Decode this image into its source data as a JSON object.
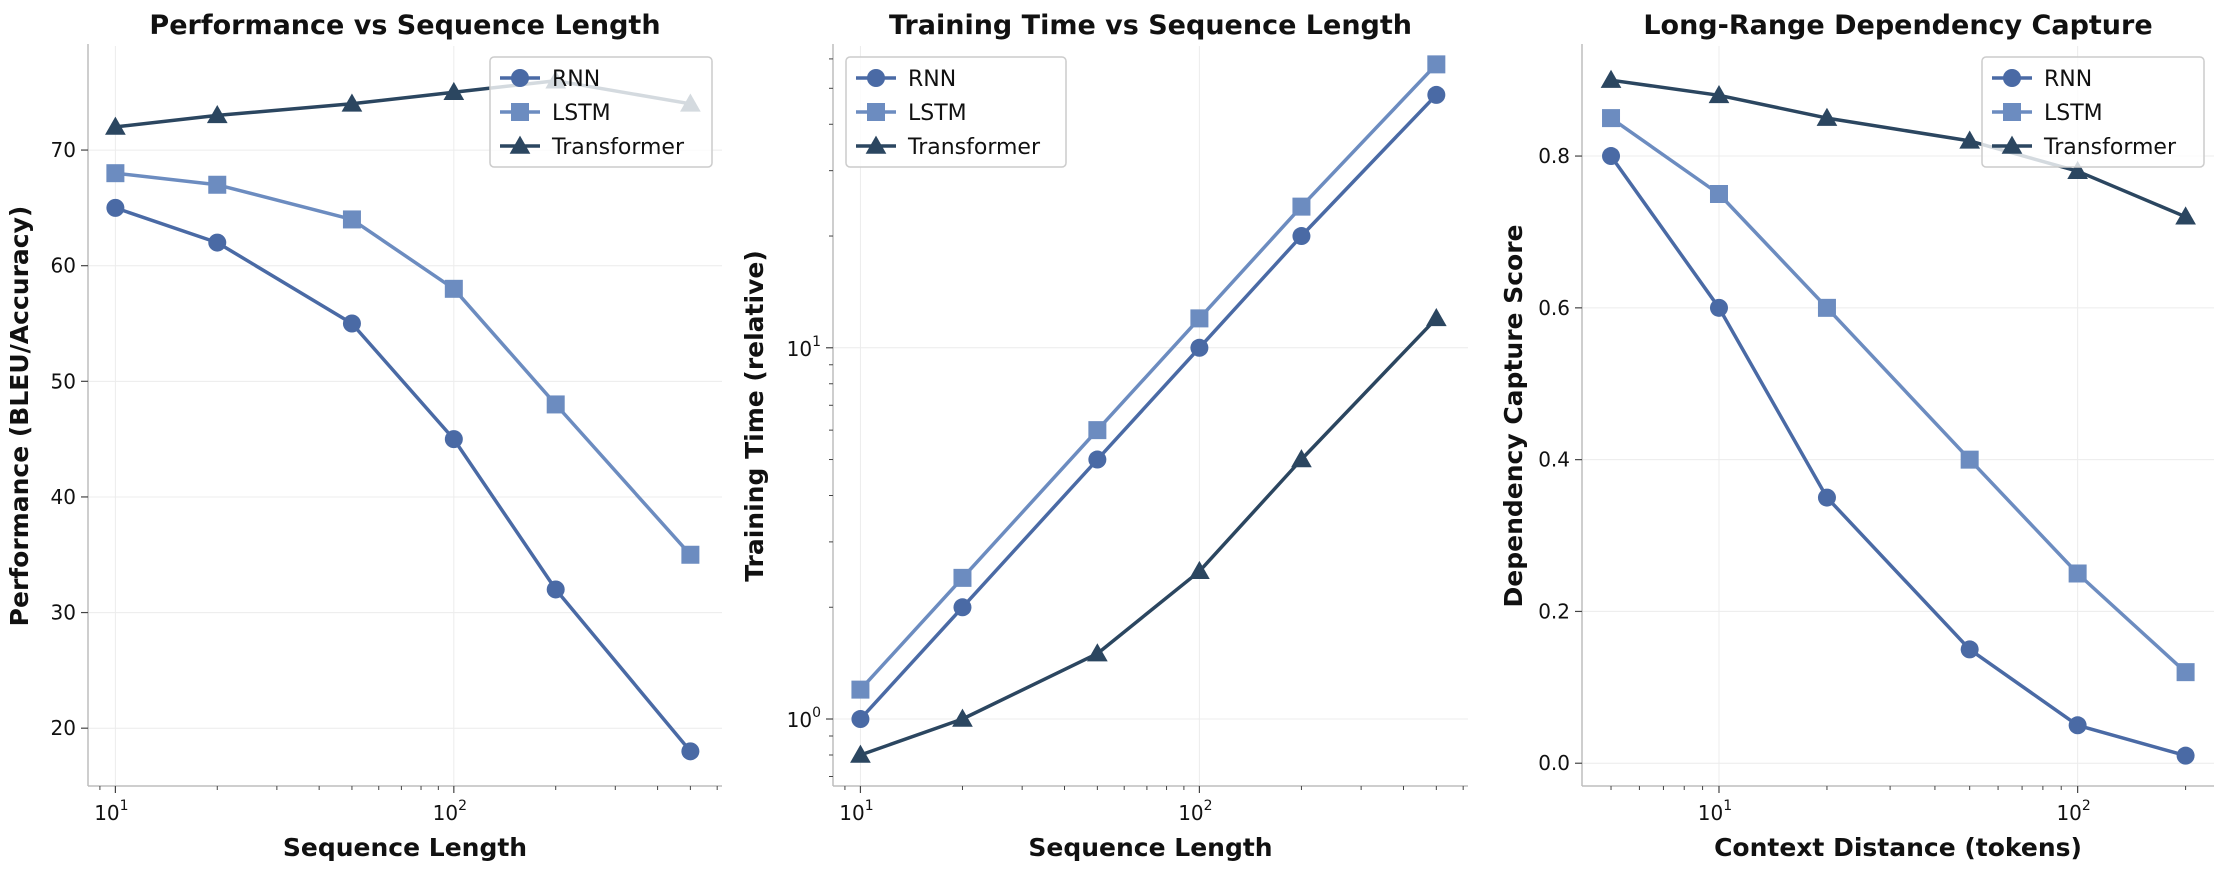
{
  "colors": {
    "RNN": "#4a6aa5",
    "LSTM": "#6c8cc0",
    "Transformer": "#2b4660"
  },
  "chart_data": [
    {
      "type": "line",
      "title": "Performance vs Sequence Length",
      "xlabel": "Sequence Length",
      "ylabel": "Performance (BLEU/Accuracy)",
      "xscale": "log",
      "yscale": "linear",
      "xlim": [
        8.3,
        620
      ],
      "ylim": [
        15,
        79
      ],
      "xticks": [
        {
          "value": 10,
          "base": "10",
          "exp": "1"
        },
        {
          "value": 100,
          "base": "10",
          "exp": "2"
        }
      ],
      "yticks": [
        20,
        30,
        40,
        50,
        60,
        70
      ],
      "legend": "top-right",
      "grid": true,
      "x": [
        10,
        20,
        50,
        100,
        200,
        500
      ],
      "series": [
        {
          "name": "RNN",
          "marker": "circle",
          "values": [
            65,
            62,
            55,
            45,
            32,
            18
          ]
        },
        {
          "name": "LSTM",
          "marker": "square",
          "values": [
            68,
            67,
            64,
            58,
            48,
            35
          ]
        },
        {
          "name": "Transformer",
          "marker": "triangle",
          "values": [
            72,
            73,
            74,
            75,
            76,
            74
          ]
        }
      ]
    },
    {
      "type": "line",
      "title": "Training Time vs Sequence Length",
      "xlabel": "Sequence Length",
      "ylabel": "Training Time (relative)",
      "xscale": "log",
      "yscale": "log",
      "xlim": [
        8.3,
        620
      ],
      "ylim": [
        0.66,
        65
      ],
      "xticks": [
        {
          "value": 10,
          "base": "10",
          "exp": "1"
        },
        {
          "value": 100,
          "base": "10",
          "exp": "2"
        }
      ],
      "yticks": [
        {
          "value": 1,
          "base": "10",
          "exp": "0"
        },
        {
          "value": 10,
          "base": "10",
          "exp": "1"
        }
      ],
      "legend": "top-left",
      "grid": true,
      "x": [
        10,
        20,
        50,
        100,
        200,
        500
      ],
      "series": [
        {
          "name": "RNN",
          "marker": "circle",
          "values": [
            1.0,
            2.0,
            5.0,
            10,
            20,
            48
          ]
        },
        {
          "name": "LSTM",
          "marker": "square",
          "values": [
            1.2,
            2.4,
            6.0,
            12,
            24,
            58
          ]
        },
        {
          "name": "Transformer",
          "marker": "triangle",
          "values": [
            0.8,
            1.0,
            1.5,
            2.5,
            5.0,
            12
          ]
        }
      ]
    },
    {
      "type": "line",
      "title": "Long-Range Dependency Capture",
      "xlabel": "Context Distance (tokens)",
      "ylabel": "Dependency Capture Score",
      "xscale": "log",
      "yscale": "linear",
      "xlim": [
        4.15,
        240
      ],
      "ylim": [
        -0.03,
        0.945
      ],
      "xticks": [
        {
          "value": 10,
          "base": "10",
          "exp": "1"
        },
        {
          "value": 100,
          "base": "10",
          "exp": "2"
        }
      ],
      "yticks": [
        "0.0",
        "0.2",
        "0.4",
        "0.6",
        "0.8"
      ],
      "legend": "top-right",
      "grid": true,
      "x": [
        5,
        10,
        20,
        50,
        100,
        200
      ],
      "series": [
        {
          "name": "RNN",
          "marker": "circle",
          "values": [
            0.8,
            0.6,
            0.35,
            0.15,
            0.05,
            0.01
          ]
        },
        {
          "name": "LSTM",
          "marker": "square",
          "values": [
            0.85,
            0.75,
            0.6,
            0.4,
            0.25,
            0.12
          ]
        },
        {
          "name": "Transformer",
          "marker": "triangle",
          "values": [
            0.9,
            0.88,
            0.85,
            0.82,
            0.78,
            0.72
          ]
        }
      ]
    }
  ]
}
